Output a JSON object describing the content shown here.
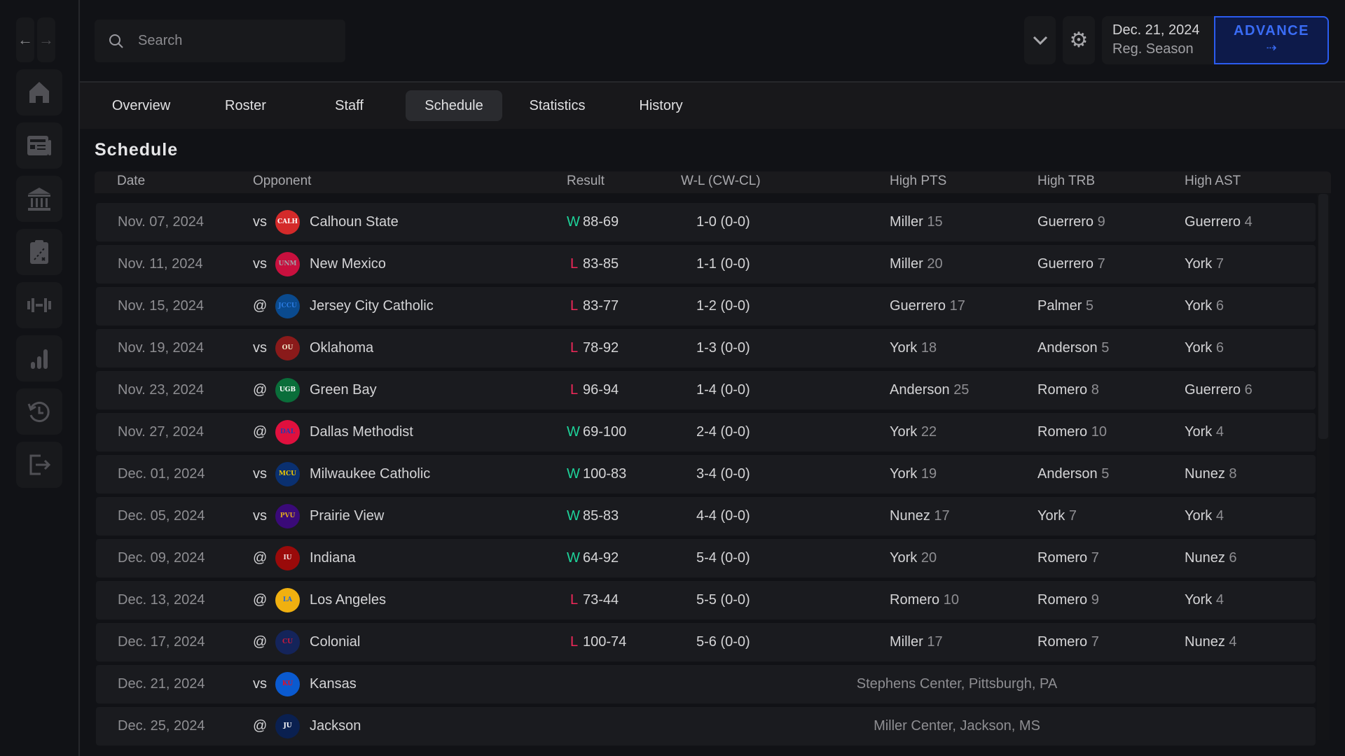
{
  "search": {
    "placeholder": "Search"
  },
  "header": {
    "date": "Dec. 21, 2024",
    "phase": "Reg. Season",
    "advance_label": "ADVANCE",
    "advance_arrow": "⇢"
  },
  "tabs": [
    {
      "label": "Overview"
    },
    {
      "label": "Roster"
    },
    {
      "label": "Staff"
    },
    {
      "label": "Schedule",
      "active": true
    },
    {
      "label": "Statistics"
    },
    {
      "label": "History"
    }
  ],
  "page_title": "Schedule",
  "columns": {
    "date": "Date",
    "opponent": "Opponent",
    "result": "Result",
    "record": "W-L (CW-CL)",
    "high_pts": "High PTS",
    "high_trb": "High TRB",
    "high_ast": "High AST"
  },
  "colors": {
    "win": "#1ed39a",
    "loss": "#f0285a",
    "accent": "#2b5cf0"
  },
  "games": [
    {
      "date": "Nov. 07, 2024",
      "loc": "vs",
      "abbr": "CALH",
      "logo_bg": "#d42a2a",
      "logo_fg": "#ffffff",
      "opponent": "Calhoun State",
      "wl": "W",
      "score": "88-69",
      "record": "1-0 (0-0)",
      "pts_name": "Miller",
      "pts": "15",
      "trb_name": "Guerrero",
      "trb": "9",
      "ast_name": "Guerrero",
      "ast": "4"
    },
    {
      "date": "Nov. 11, 2024",
      "loc": "vs",
      "abbr": "UNM",
      "logo_bg": "#c8103e",
      "logo_fg": "#a0a0a8",
      "opponent": "New Mexico",
      "wl": "L",
      "score": "83-85",
      "record": "1-1 (0-0)",
      "pts_name": "Miller",
      "pts": "20",
      "trb_name": "Guerrero",
      "trb": "7",
      "ast_name": "York",
      "ast": "7"
    },
    {
      "date": "Nov. 15, 2024",
      "loc": "@",
      "abbr": "JCCU",
      "logo_bg": "#0a4a8e",
      "logo_fg": "#2a7ae0",
      "opponent": "Jersey City Catholic",
      "wl": "L",
      "score": "83-77",
      "record": "1-2 (0-0)",
      "pts_name": "Guerrero",
      "pts": "17",
      "trb_name": "Palmer",
      "trb": "5",
      "ast_name": "York",
      "ast": "6"
    },
    {
      "date": "Nov. 19, 2024",
      "loc": "vs",
      "abbr": "OU",
      "logo_bg": "#8a1a1a",
      "logo_fg": "#f0e6c8",
      "opponent": "Oklahoma",
      "wl": "L",
      "score": "78-92",
      "record": "1-3 (0-0)",
      "pts_name": "York",
      "pts": "18",
      "trb_name": "Anderson",
      "trb": "5",
      "ast_name": "York",
      "ast": "6"
    },
    {
      "date": "Nov. 23, 2024",
      "loc": "@",
      "abbr": "UGB",
      "logo_bg": "#0a6e3a",
      "logo_fg": "#ffffff",
      "opponent": "Green Bay",
      "wl": "L",
      "score": "96-94",
      "record": "1-4 (0-0)",
      "pts_name": "Anderson",
      "pts": "25",
      "trb_name": "Romero",
      "trb": "8",
      "ast_name": "Guerrero",
      "ast": "6"
    },
    {
      "date": "Nov. 27, 2024",
      "loc": "@",
      "abbr": "DAL",
      "logo_bg": "#e0103e",
      "logo_fg": "#2a3ab0",
      "opponent": "Dallas Methodist",
      "wl": "W",
      "score": "69-100",
      "record": "2-4 (0-0)",
      "pts_name": "York",
      "pts": "22",
      "trb_name": "Romero",
      "trb": "10",
      "ast_name": "York",
      "ast": "4"
    },
    {
      "date": "Dec. 01, 2024",
      "loc": "vs",
      "abbr": "MCU",
      "logo_bg": "#0a3070",
      "logo_fg": "#f0c800",
      "opponent": "Milwaukee Catholic",
      "wl": "W",
      "score": "100-83",
      "record": "3-4 (0-0)",
      "pts_name": "York",
      "pts": "19",
      "trb_name": "Anderson",
      "trb": "5",
      "ast_name": "Nunez",
      "ast": "8"
    },
    {
      "date": "Dec. 05, 2024",
      "loc": "vs",
      "abbr": "PVU",
      "logo_bg": "#3a0a78",
      "logo_fg": "#e0a820",
      "opponent": "Prairie View",
      "wl": "W",
      "score": "85-83",
      "record": "4-4 (0-0)",
      "pts_name": "Nunez",
      "pts": "17",
      "trb_name": "York",
      "trb": "7",
      "ast_name": "York",
      "ast": "4"
    },
    {
      "date": "Dec. 09, 2024",
      "loc": "@",
      "abbr": "IU",
      "logo_bg": "#9a0a0a",
      "logo_fg": "#f0e0e0",
      "opponent": "Indiana",
      "wl": "W",
      "score": "64-92",
      "record": "5-4 (0-0)",
      "pts_name": "York",
      "pts": "20",
      "trb_name": "Romero",
      "trb": "7",
      "ast_name": "Nunez",
      "ast": "6"
    },
    {
      "date": "Dec. 13, 2024",
      "loc": "@",
      "abbr": "LA",
      "logo_bg": "#f0b010",
      "logo_fg": "#2a6ad0",
      "opponent": "Los Angeles",
      "wl": "L",
      "score": "73-44",
      "record": "5-5 (0-0)",
      "pts_name": "Romero",
      "pts": "10",
      "trb_name": "Romero",
      "trb": "9",
      "ast_name": "York",
      "ast": "4"
    },
    {
      "date": "Dec. 17, 2024",
      "loc": "@",
      "abbr": "CU",
      "logo_bg": "#14245a",
      "logo_fg": "#c81a3a",
      "opponent": "Colonial",
      "wl": "L",
      "score": "100-74",
      "record": "5-6 (0-0)",
      "pts_name": "Miller",
      "pts": "17",
      "trb_name": "Romero",
      "trb": "7",
      "ast_name": "Nunez",
      "ast": "4"
    },
    {
      "date": "Dec. 21, 2024",
      "loc": "vs",
      "abbr": "KU",
      "logo_bg": "#0a5ad0",
      "logo_fg": "#e0102a",
      "opponent": "Kansas",
      "venue": "Stephens Center, Pittsburgh, PA"
    },
    {
      "date": "Dec. 25, 2024",
      "loc": "@",
      "abbr": "JU",
      "logo_bg": "#0a2050",
      "logo_fg": "#ffffff",
      "opponent": "Jackson",
      "venue": "Miller Center, Jackson, MS"
    }
  ]
}
